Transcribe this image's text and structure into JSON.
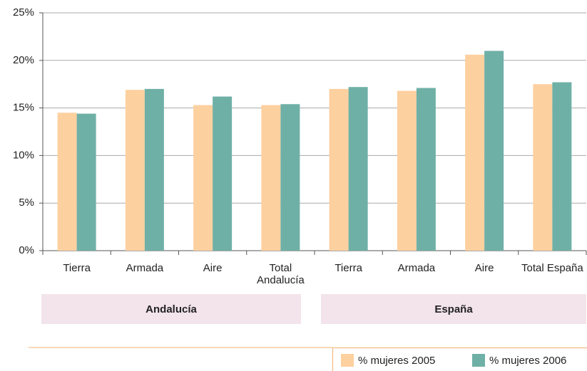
{
  "chart_data": {
    "type": "bar",
    "categories": [
      "Tierra",
      "Armada",
      "Aire",
      "Total Andalucía",
      "Tierra",
      "Armada",
      "Aire",
      "Total España"
    ],
    "groups": [
      "Andalucía",
      "España"
    ],
    "series": [
      {
        "name": "% mujeres 2005",
        "color": "#fdd09f",
        "values": [
          14.5,
          16.9,
          15.3,
          15.3,
          17.0,
          16.8,
          20.6,
          17.5
        ]
      },
      {
        "name": "% mujeres 2006",
        "color": "#6fb0a6",
        "values": [
          14.4,
          17.0,
          16.2,
          15.4,
          17.2,
          17.1,
          21.0,
          17.7
        ]
      }
    ],
    "ylim": [
      0,
      25
    ],
    "yticks": [
      {
        "value": 0,
        "label": "0%"
      },
      {
        "value": 5,
        "label": "5%"
      },
      {
        "value": 10,
        "label": "10%"
      },
      {
        "value": 15,
        "label": "15%"
      },
      {
        "value": 20,
        "label": "20%"
      },
      {
        "value": 25,
        "label": "25%"
      }
    ],
    "grid": true,
    "legend": "bottom-right"
  }
}
